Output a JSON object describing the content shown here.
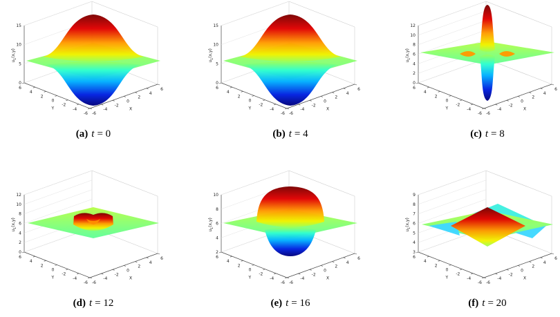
{
  "panels": [
    {
      "label": "(a)",
      "variable": "t",
      "relation": "= 0",
      "zlabel": {
        "base": "u",
        "sub": "1",
        "args": "(x,y)"
      },
      "zlim": [
        0,
        15
      ],
      "zticks": [
        0,
        5,
        10,
        15
      ],
      "xlim": [
        -6,
        6
      ],
      "xticks": [
        -6,
        -4,
        -2,
        0,
        2,
        4,
        6
      ],
      "ylim": [
        6,
        -6
      ],
      "yticks": [
        6,
        4,
        2,
        0,
        -2,
        -4,
        -6
      ],
      "xlabel": "X",
      "ylabel": "Y"
    },
    {
      "label": "(b)",
      "variable": "t",
      "relation": "= 4",
      "zlabel": {
        "base": "u",
        "sub": "1",
        "args": "(x,y)"
      },
      "zlim": [
        0,
        15
      ],
      "zticks": [
        0,
        5,
        10,
        15
      ],
      "xlim": [
        -6,
        6
      ],
      "xticks": [
        -6,
        -4,
        -2,
        0,
        2,
        4,
        6
      ],
      "ylim": [
        6,
        -6
      ],
      "yticks": [
        6,
        4,
        2,
        0,
        -2,
        -4,
        -6
      ],
      "xlabel": "X",
      "ylabel": "Y"
    },
    {
      "label": "(c)",
      "variable": "t",
      "relation": "= 8",
      "zlabel": {
        "base": "u",
        "sub": "1",
        "args": "(x,y)"
      },
      "zlim": [
        0,
        12
      ],
      "zticks": [
        0,
        2,
        4,
        6,
        8,
        10,
        12
      ],
      "xlim": [
        -6,
        6
      ],
      "xticks": [
        -6,
        -4,
        -2,
        0,
        2,
        4,
        6
      ],
      "ylim": [
        6,
        -6
      ],
      "yticks": [
        6,
        4,
        2,
        0,
        -2,
        -4,
        -6
      ],
      "xlabel": "X",
      "ylabel": "Y"
    },
    {
      "label": "(d)",
      "variable": "t",
      "relation": "= 12",
      "zlabel": {
        "base": "u",
        "sub": "1",
        "args": "(x,y)"
      },
      "zlim": [
        0,
        12
      ],
      "zticks": [
        0,
        2,
        4,
        6,
        8,
        10,
        12
      ],
      "xlim": [
        -6,
        6
      ],
      "xticks": [
        -6,
        -4,
        -2,
        0,
        2,
        4,
        6
      ],
      "ylim": [
        6,
        -6
      ],
      "yticks": [
        6,
        4,
        2,
        0,
        -2,
        -4,
        -6
      ],
      "xlabel": "X",
      "ylabel": "Y"
    },
    {
      "label": "(e)",
      "variable": "t",
      "relation": "= 16",
      "zlabel": {
        "base": "u",
        "sub": "1",
        "args": "(x,y)"
      },
      "zlim": [
        2,
        10
      ],
      "zticks": [
        2,
        4,
        6,
        8,
        10
      ],
      "xlim": [
        -6,
        6
      ],
      "xticks": [
        -6,
        -4,
        -2,
        0,
        2,
        4,
        6
      ],
      "ylim": [
        6,
        -6
      ],
      "yticks": [
        6,
        4,
        2,
        0,
        -2,
        -4,
        -6
      ],
      "xlabel": "X",
      "ylabel": "Y"
    },
    {
      "label": "(f)",
      "variable": "t",
      "relation": "= 20",
      "zlabel": {
        "base": "u",
        "sub": "1",
        "args": "(x,y)"
      },
      "zlim": [
        3,
        9
      ],
      "zticks": [
        3,
        4,
        5,
        6,
        7,
        8,
        9
      ],
      "xlim": [
        -6,
        6
      ],
      "xticks": [
        -6,
        -4,
        -2,
        0,
        2,
        4,
        6
      ],
      "ylim": [
        6,
        -6
      ],
      "yticks": [
        6,
        4,
        2,
        0,
        -2,
        -4,
        -6
      ],
      "xlabel": "X",
      "ylabel": "Y"
    }
  ]
}
